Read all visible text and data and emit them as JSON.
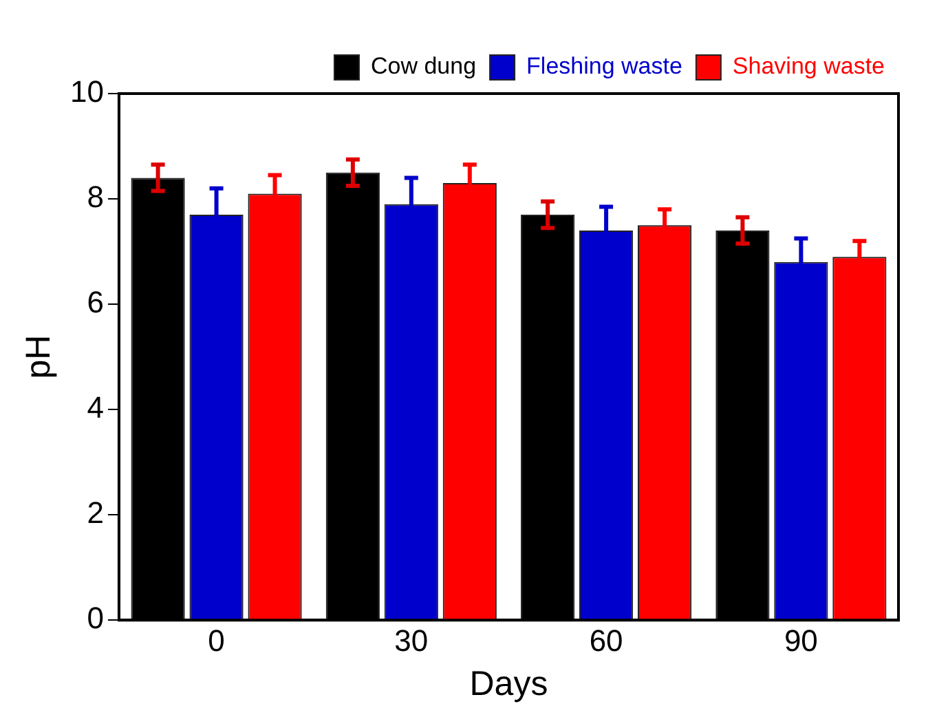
{
  "chart_data": {
    "type": "bar",
    "xlabel": "Days",
    "ylabel": "pH",
    "categories": [
      "0",
      "30",
      "60",
      "90"
    ],
    "series": [
      {
        "name": "Cow dung",
        "color": "#000000",
        "values": [
          8.4,
          8.5,
          7.7,
          7.4
        ],
        "errors": [
          0.25,
          0.25,
          0.25,
          0.25
        ]
      },
      {
        "name": "Fleshing waste",
        "color": "#0000cc",
        "values": [
          7.7,
          7.9,
          7.4,
          6.8
        ],
        "errors": [
          0.5,
          0.5,
          0.45,
          0.45
        ]
      },
      {
        "name": "Shaving waste",
        "color": "#ff0000",
        "values": [
          8.1,
          8.3,
          7.5,
          6.9
        ],
        "errors": [
          0.35,
          0.35,
          0.3,
          0.3
        ]
      }
    ],
    "ylim": [
      0,
      10
    ],
    "yticks": [
      0,
      2,
      4,
      6,
      8,
      10
    ],
    "grid": false,
    "legend": "top right"
  }
}
